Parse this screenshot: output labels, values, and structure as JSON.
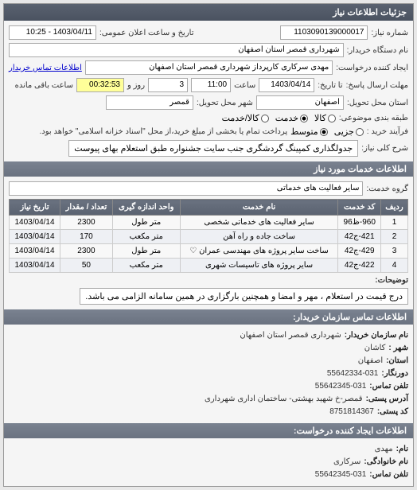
{
  "panel_title": "جزئیات اطلاعات نیاز",
  "r1": {
    "num_label": "شماره نیاز:",
    "num_value": "1103090139000017",
    "date_label": "تاریخ و ساعت اعلان عمومی:",
    "date_value": "1403/04/11 - 10:25"
  },
  "r2": {
    "label": "نام دستگاه خریدار:",
    "value": "شهرداری قمصر استان اصفهان"
  },
  "r3": {
    "label": "ایجاد کننده درخواست:",
    "value": "مهدی سرکاری کارپرداز شهرداری قمصر استان اصفهان",
    "link": "اطلاعات تماس خریدار"
  },
  "r4": {
    "deadline_label": "مهلت ارسال پاسخ:",
    "to_date_label": "تا تاریخ:",
    "date": "1403/04/14",
    "time_label": "ساعت",
    "time": "11:00",
    "days": "3",
    "days_label": "روز و",
    "remain": "00:32:53",
    "remain_label": "ساعت باقی مانده"
  },
  "r5": {
    "prov_label": "استان محل تحویل:",
    "prov": "اصفهان",
    "city_label": "شهر محل تحویل:",
    "city": "قمصر"
  },
  "r6": {
    "label": "طبقه بندی موضوعی:",
    "opts": [
      {
        "t": "کالا",
        "c": false
      },
      {
        "t": "خدمت",
        "c": true
      },
      {
        "t": "کالا/خدمت",
        "c": false
      }
    ]
  },
  "r7": {
    "label": "فرآیند خرید :",
    "opts": [
      {
        "t": "جزیی",
        "c": false
      },
      {
        "t": "متوسط",
        "c": true
      }
    ],
    "note": "پرداخت تمام یا بخشی از مبلغ خرید،از محل \"اسناد خزانه اسلامی\" خواهد بود."
  },
  "r8": {
    "label": "شرح کلی نیاز:",
    "value": "جدولگذاری کمپینگ گردشگری جنب سایت جشنواره طبق استعلام بهای پیوست"
  },
  "services_header": "اطلاعات خدمات مورد نیاز",
  "group_label": "گروه خدمت:",
  "group_value": "سایر فعالیت های خدماتی",
  "table": {
    "cols": [
      "ردیف",
      "کد خدمت",
      "نام خدمت",
      "واحد اندازه گیری",
      "تعداد / مقدار",
      "تاریخ نیاز"
    ],
    "rows": [
      [
        "1",
        "960-ظ96",
        "سایر فعالیت های خدماتی شخصی",
        "متر طول",
        "2300",
        "1403/04/14"
      ],
      [
        "2",
        "421-ج42",
        "ساخت جاده و راه آهن",
        "متر مکعب",
        "170",
        "1403/04/14"
      ],
      [
        "3",
        "429-ج42",
        "ساخت سایر پروژه های مهندسی عمران   ♡",
        "متر طول",
        "2300",
        "1403/04/14"
      ],
      [
        "4",
        "422-ج42",
        "سایر پروژه های تاسیسات شهری",
        "متر مکعب",
        "50",
        "1403/04/14"
      ]
    ]
  },
  "explain_header": "توضیحات:",
  "explain": "درج قیمت در استعلام ، مهر و امضا و همچنین بارگزاری در همین سامانه الزامی می باشد.",
  "contact_header": "اطلاعات تماس سازمان خریدار:",
  "contact": [
    {
      "k": "نام سازمان خریدار:",
      "v": "شهرداری قمصر استان اصفهان"
    },
    {
      "k": "شهر :",
      "v": "کاشان"
    },
    {
      "k": "استان:",
      "v": "اصفهان"
    },
    {
      "k": "دورنگار:",
      "v": "031-55642334"
    },
    {
      "k": "تلفن تماس:",
      "v": "031-55642345"
    },
    {
      "k": "آدرس پستی:",
      "v": "قمصر-خ شهید بهشتی- ساختمان اداری شهرداری"
    },
    {
      "k": "کد پستی:",
      "v": "8751814367"
    }
  ],
  "requester_header": "اطلاعات ایجاد کننده درخواست:",
  "requester": [
    {
      "k": "نام:",
      "v": "مهدی"
    },
    {
      "k": "نام خانوادگی:",
      "v": "سرکاری"
    },
    {
      "k": "تلفن تماس:",
      "v": "031-55642345"
    }
  ]
}
